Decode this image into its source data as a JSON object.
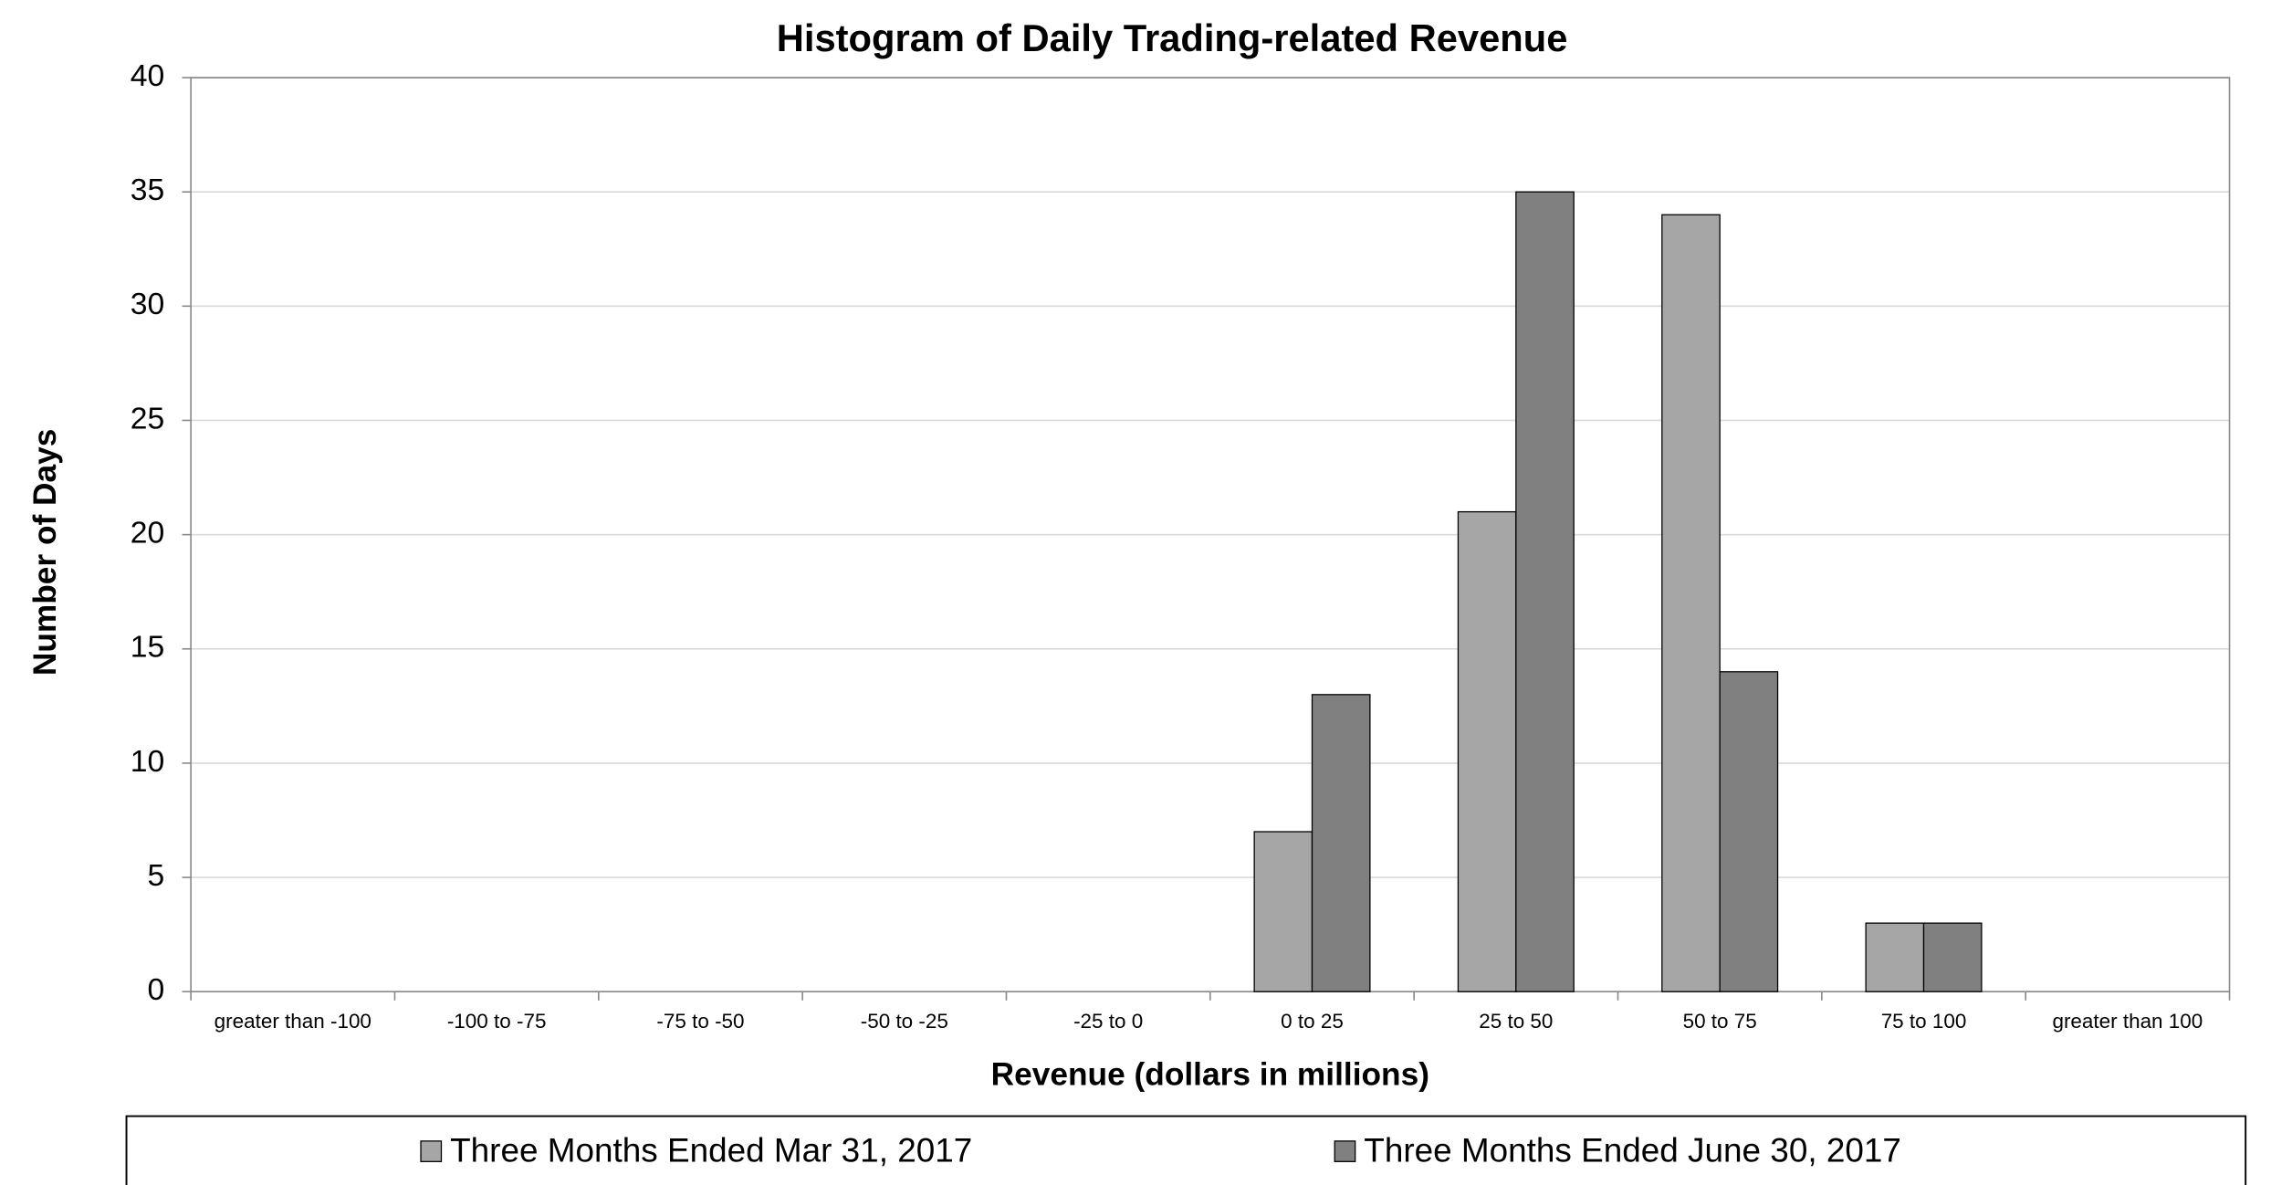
{
  "chart_data": {
    "type": "bar",
    "title": "Histogram of Daily Trading-related Revenue",
    "x_label": "Revenue (dollars in millions)",
    "y_label": "Number of Days",
    "categories": [
      "greater than -100",
      "-100 to -75",
      "-75 to -50",
      "-50 to -25",
      "-25 to 0",
      "0 to 25",
      "25 to 50",
      "50 to 75",
      "75 to 100",
      "greater than 100"
    ],
    "series": [
      {
        "name": "Three Months Ended Mar 31, 2017",
        "color": "#a6a6a6",
        "values": [
          0,
          0,
          0,
          0,
          0,
          7,
          21,
          34,
          3,
          0
        ]
      },
      {
        "name": "Three Months Ended June 30, 2017",
        "color": "#808080",
        "values": [
          0,
          0,
          0,
          0,
          0,
          13,
          35,
          14,
          3,
          0
        ]
      }
    ],
    "ylim": [
      0,
      40
    ],
    "yticks": [
      0,
      5,
      10,
      15,
      20,
      25,
      30,
      35,
      40
    ],
    "grid": true,
    "legend": "bottom"
  }
}
